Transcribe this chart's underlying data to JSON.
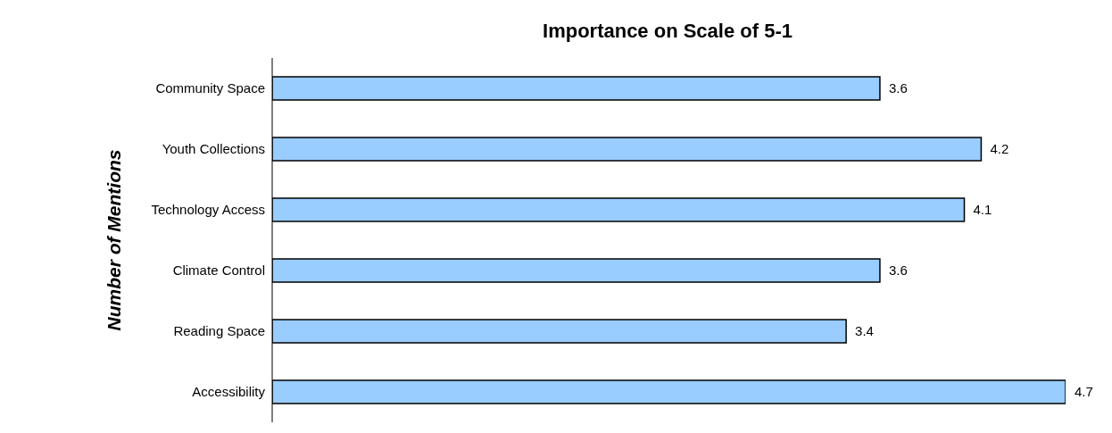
{
  "chart_data": {
    "type": "bar",
    "orientation": "horizontal",
    "title": "Importance on Scale of 5-1",
    "ylabel": "Number of Mentions",
    "categories": [
      "Community Space",
      "Youth Collections",
      "Technology Access",
      "Climate Control",
      "Reading Space",
      "Accessibility"
    ],
    "values": [
      3.6,
      4.2,
      4.1,
      3.6,
      3.4,
      4.7
    ],
    "color": "#99ccff",
    "data_labels": true
  }
}
